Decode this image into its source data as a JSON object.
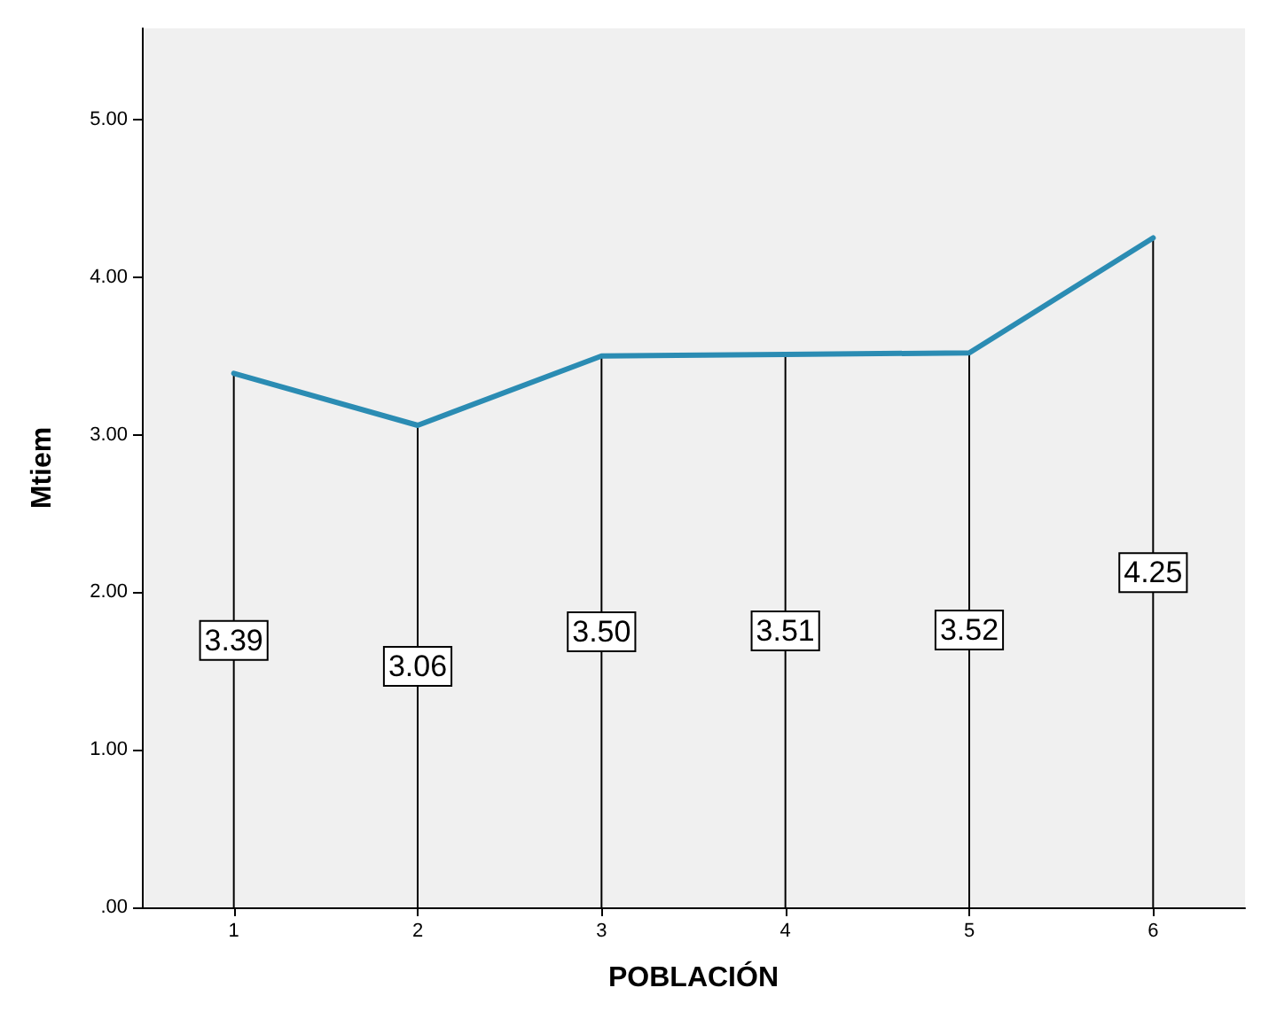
{
  "chart_data": {
    "type": "line",
    "xlabel": "POBLACIÓN",
    "ylabel": "Mtiem",
    "categories": [
      "1",
      "2",
      "3",
      "4",
      "5",
      "6"
    ],
    "series": [
      {
        "color": "#2b8cb3",
        "values": [
          3.39,
          3.06,
          3.5,
          3.51,
          3.52,
          4.25
        ]
      },
      {
        "type": "bar",
        "color": "#000000",
        "values": [
          3.39,
          3.06,
          3.5,
          3.51,
          3.52,
          4.25
        ],
        "value_labels": [
          "3.39",
          "3.06",
          "3.50",
          "3.51",
          "3.52",
          "4.25"
        ]
      }
    ],
    "ylim": [
      0,
      5.58
    ],
    "yticks": [
      {
        "value": 0,
        "label": ".00"
      },
      {
        "value": 1,
        "label": "1.00"
      },
      {
        "value": 2,
        "label": "2.00"
      },
      {
        "value": 3,
        "label": "3.00"
      },
      {
        "value": 4,
        "label": "4.00"
      },
      {
        "value": 5,
        "label": "5.00"
      }
    ],
    "grid": false,
    "marker": "none",
    "line_style": "solid"
  }
}
